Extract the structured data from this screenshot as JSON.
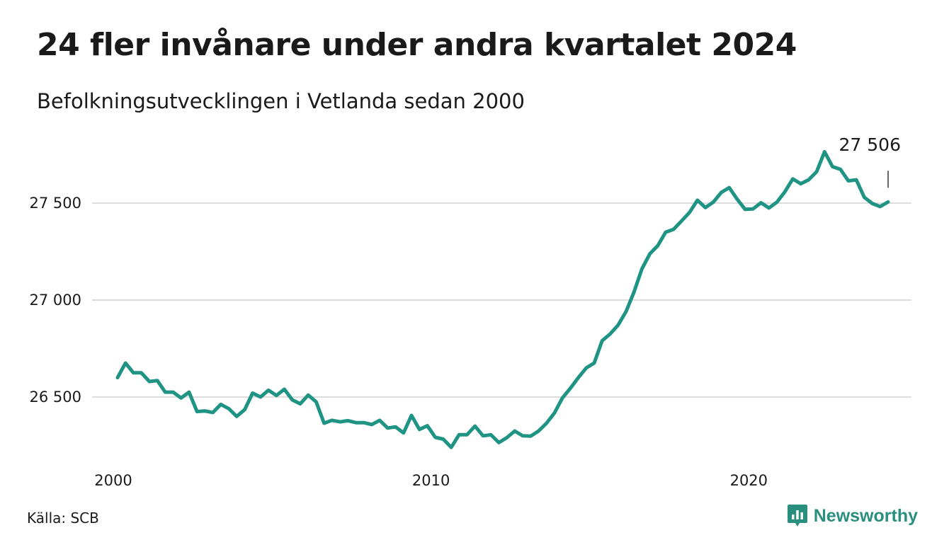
{
  "title": "24 fler invånare under andra kvartalet 2024",
  "subtitle": "Befolkningsutvecklingen i Vetlanda sedan 2000",
  "source": "Källa: SCB",
  "brand": {
    "name": "Newsworthy",
    "icon": "newsworthy-logo-icon",
    "color": "#2a8f7e"
  },
  "chart_data": {
    "type": "line",
    "title": "24 fler invånare under andra kvartalet 2024",
    "subtitle": "Befolkningsutvecklingen i Vetlanda sedan 2000",
    "xlabel": "",
    "ylabel": "",
    "x_ticks": [
      "2000",
      "2010",
      "2020"
    ],
    "y_ticks": [
      {
        "value": 26500,
        "label": "26 500"
      },
      {
        "value": 27000,
        "label": "27 000"
      },
      {
        "value": 27500,
        "label": "27 500"
      }
    ],
    "ylim": [
      26200,
      27800
    ],
    "xlim": [
      2000.0,
      2024.25
    ],
    "grid": true,
    "line_color": "#1f9484",
    "grid_color": "#dddddd",
    "end_label": "27 506",
    "series": [
      {
        "x": [
          2000.0,
          2000.25,
          2000.5,
          2000.75,
          2001.0,
          2001.25,
          2001.5,
          2001.75,
          2002.0,
          2002.25,
          2002.5,
          2002.75,
          2003.0,
          2003.25,
          2003.5,
          2003.75,
          2004.0,
          2004.25,
          2004.5,
          2004.75,
          2005.0,
          2005.25,
          2005.5,
          2005.75,
          2006.0,
          2006.25,
          2006.5,
          2006.75,
          2007.0,
          2007.25,
          2007.5,
          2007.75,
          2008.0,
          2008.25,
          2008.5,
          2008.75,
          2009.0,
          2009.25,
          2009.5,
          2009.75,
          2010.0,
          2010.25,
          2010.5,
          2010.75,
          2011.0,
          2011.25,
          2011.5,
          2011.75,
          2012.0,
          2012.25,
          2012.5,
          2012.75,
          2013.0,
          2013.25,
          2013.5,
          2013.75,
          2014.0,
          2014.25,
          2014.5,
          2014.75,
          2015.0,
          2015.25,
          2015.5,
          2015.75,
          2016.0,
          2016.25,
          2016.5,
          2016.75,
          2017.0,
          2017.25,
          2017.5,
          2017.75,
          2018.0,
          2018.25,
          2018.5,
          2018.75,
          2019.0,
          2019.25,
          2019.5,
          2019.75,
          2020.0,
          2020.25,
          2020.5,
          2020.75,
          2021.0,
          2021.25,
          2021.5,
          2021.75,
          2022.0,
          2022.25,
          2022.5,
          2022.75,
          2023.0,
          2023.25,
          2023.5,
          2023.75,
          2024.0,
          2024.25
        ],
        "values": [
          26600,
          26675,
          26625,
          26625,
          26580,
          26585,
          26525,
          26525,
          26495,
          26525,
          26425,
          26428,
          26420,
          26462,
          26440,
          26400,
          26435,
          26520,
          26500,
          26535,
          26508,
          26540,
          26485,
          26465,
          26510,
          26475,
          26365,
          26380,
          26372,
          26378,
          26368,
          26368,
          26358,
          26380,
          26340,
          26346,
          26315,
          26405,
          26333,
          26352,
          26292,
          26283,
          26240,
          26306,
          26306,
          26350,
          26300,
          26305,
          26265,
          26290,
          26325,
          26300,
          26298,
          26325,
          26365,
          26418,
          26495,
          26545,
          26600,
          26650,
          26675,
          26790,
          26825,
          26870,
          26940,
          27040,
          27160,
          27238,
          27280,
          27350,
          27365,
          27408,
          27452,
          27515,
          27477,
          27505,
          27555,
          27580,
          27520,
          27468,
          27470,
          27502,
          27475,
          27505,
          27558,
          27625,
          27600,
          27620,
          27662,
          27765,
          27688,
          27674,
          27615,
          27620,
          27530,
          27498,
          27482,
          27506
        ]
      }
    ]
  }
}
